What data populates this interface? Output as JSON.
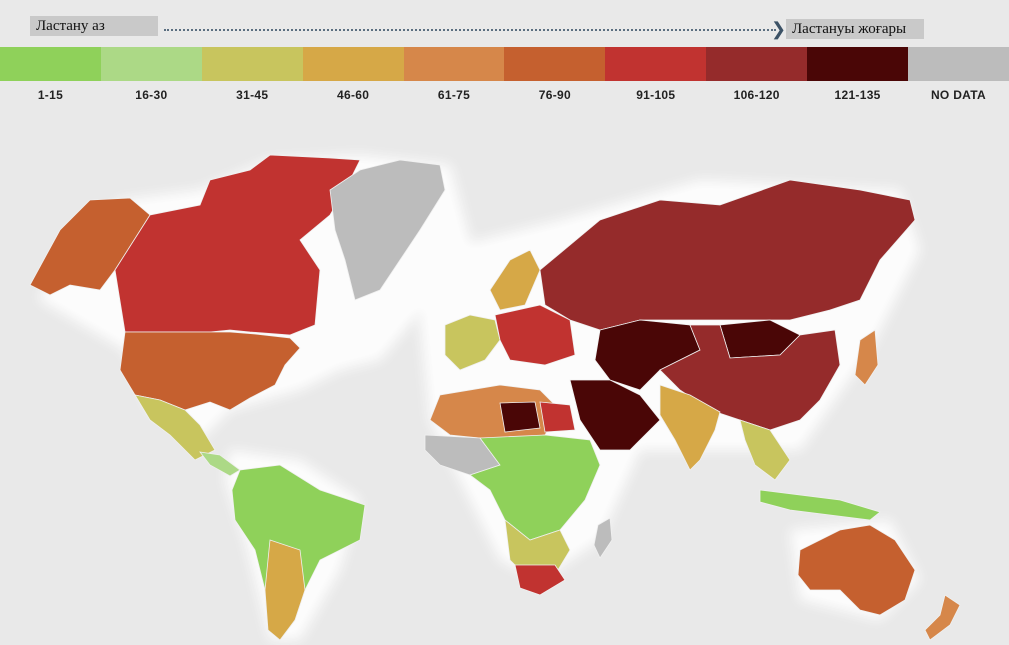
{
  "scale": {
    "low_label": "Ластану аз",
    "high_label": "Ластануы жоғары"
  },
  "legend": [
    {
      "label": "1-15",
      "color": "#8fd15a"
    },
    {
      "label": "16-30",
      "color": "#acd986"
    },
    {
      "label": "31-45",
      "color": "#c8c55e"
    },
    {
      "label": "46-60",
      "color": "#d6a847"
    },
    {
      "label": "61-75",
      "color": "#d6874a"
    },
    {
      "label": "76-90",
      "color": "#c5602f"
    },
    {
      "label": "91-105",
      "color": "#c13330"
    },
    {
      "label": "106-120",
      "color": "#952b2b"
    },
    {
      "label": "121-135",
      "color": "#4a0606"
    },
    {
      "label": "NO DATA",
      "color": "#bcbcbc"
    }
  ],
  "map_colors": {
    "land_no_data": "#bcbcbc",
    "background": "#e9e9e9"
  }
}
